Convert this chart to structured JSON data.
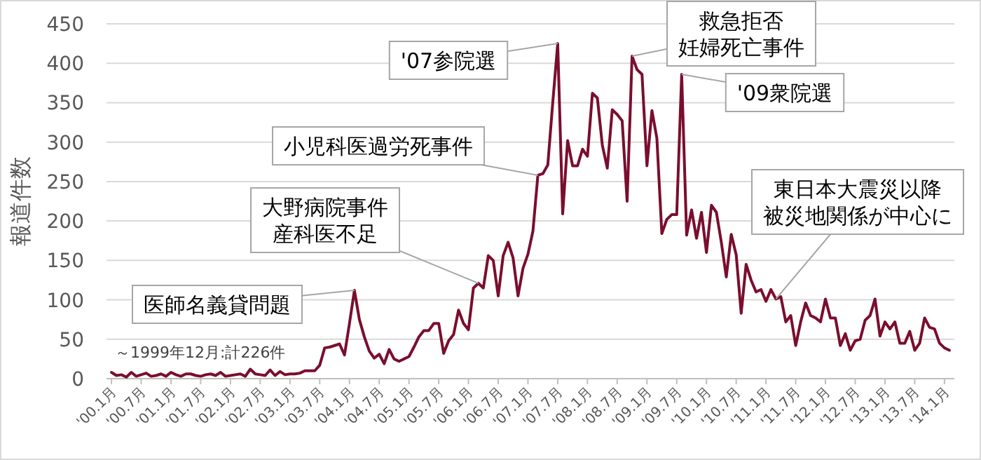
{
  "chart_data": {
    "type": "line",
    "ylabel": "報道件数",
    "x": [
      "2000-01",
      "2000-02",
      "2000-03",
      "2000-04",
      "2000-05",
      "2000-06",
      "2000-07",
      "2000-08",
      "2000-09",
      "2000-10",
      "2000-11",
      "2000-12",
      "2001-01",
      "2001-02",
      "2001-03",
      "2001-04",
      "2001-05",
      "2001-06",
      "2001-07",
      "2001-08",
      "2001-09",
      "2001-10",
      "2001-11",
      "2001-12",
      "2002-01",
      "2002-02",
      "2002-03",
      "2002-04",
      "2002-05",
      "2002-06",
      "2002-07",
      "2002-08",
      "2002-09",
      "2002-10",
      "2002-11",
      "2002-12",
      "2003-01",
      "2003-02",
      "2003-03",
      "2003-04",
      "2003-05",
      "2003-06",
      "2003-07",
      "2003-08",
      "2003-09",
      "2003-10",
      "2003-11",
      "2003-12",
      "2004-01",
      "2004-02",
      "2004-03",
      "2004-04",
      "2004-05",
      "2004-06",
      "2004-07",
      "2004-08",
      "2004-09",
      "2004-10",
      "2004-11",
      "2004-12",
      "2005-01",
      "2005-02",
      "2005-03",
      "2005-04",
      "2005-05",
      "2005-06",
      "2005-07",
      "2005-08",
      "2005-09",
      "2005-10",
      "2005-11",
      "2005-12",
      "2006-01",
      "2006-02",
      "2006-03",
      "2006-04",
      "2006-05",
      "2006-06",
      "2006-07",
      "2006-08",
      "2006-09",
      "2006-10",
      "2006-11",
      "2006-12",
      "2007-01",
      "2007-02",
      "2007-03",
      "2007-04",
      "2007-05",
      "2007-06",
      "2007-07",
      "2007-08",
      "2007-09",
      "2007-10",
      "2007-11",
      "2007-12",
      "2008-01",
      "2008-02",
      "2008-03",
      "2008-04",
      "2008-05",
      "2008-06",
      "2008-07",
      "2008-08",
      "2008-09",
      "2008-10",
      "2008-11",
      "2008-12",
      "2009-01",
      "2009-02",
      "2009-03",
      "2009-04",
      "2009-05",
      "2009-06",
      "2009-07",
      "2009-08",
      "2009-09",
      "2009-10",
      "2009-11",
      "2009-12",
      "2010-01",
      "2010-02",
      "2010-03",
      "2010-04",
      "2010-05",
      "2010-06",
      "2010-07",
      "2010-08",
      "2010-09",
      "2010-10",
      "2010-11",
      "2010-12",
      "2011-01",
      "2011-02",
      "2011-03",
      "2011-04",
      "2011-05",
      "2011-06",
      "2011-07",
      "2011-08",
      "2011-09",
      "2011-10",
      "2011-11",
      "2011-12",
      "2012-01",
      "2012-02",
      "2012-03",
      "2012-04",
      "2012-05",
      "2012-06",
      "2012-07",
      "2012-08",
      "2012-09",
      "2012-10",
      "2012-11",
      "2012-12",
      "2013-01",
      "2013-02",
      "2013-03",
      "2013-04",
      "2013-05",
      "2013-06",
      "2013-07",
      "2013-08",
      "2013-09",
      "2013-10",
      "2013-11",
      "2013-12",
      "2014-01",
      "2014-02"
    ],
    "series": [
      {
        "color": "#7a0e2e",
        "values": [
          8,
          4,
          5,
          2,
          8,
          3,
          5,
          7,
          3,
          4,
          6,
          3,
          8,
          5,
          3,
          6,
          6,
          4,
          3,
          5,
          6,
          4,
          8,
          3,
          4,
          5,
          6,
          3,
          12,
          6,
          5,
          4,
          11,
          4,
          9,
          5,
          6,
          6,
          7,
          10,
          10,
          10,
          17,
          39,
          40,
          42,
          44,
          30,
          70,
          112,
          75,
          53,
          35,
          26,
          31,
          19,
          37,
          25,
          22,
          25,
          28,
          40,
          53,
          61,
          61,
          70,
          70,
          32,
          48,
          56,
          87,
          70,
          62,
          115,
          121,
          115,
          156,
          150,
          105,
          156,
          173,
          153,
          105,
          140,
          158,
          187,
          258,
          260,
          271,
          350,
          425,
          209,
          302,
          270,
          270,
          291,
          282,
          362,
          356,
          296,
          267,
          341,
          335,
          327,
          225,
          409,
          392,
          386,
          270,
          340,
          305,
          184,
          202,
          208,
          208,
          386,
          182,
          214,
          178,
          211,
          160,
          220,
          211,
          173,
          129,
          183,
          157,
          83,
          145,
          125,
          110,
          113,
          98,
          113,
          101,
          104,
          72,
          80,
          42,
          72,
          96,
          80,
          77,
          72,
          101,
          77,
          77,
          42,
          57,
          36,
          48,
          50,
          74,
          80,
          101,
          54,
          72,
          63,
          72,
          45,
          45,
          60,
          36,
          45,
          77,
          65,
          63,
          45,
          39,
          36
        ]
      }
    ],
    "xlim": [
      "1999-12",
      "2014-03"
    ],
    "xticks": [
      {
        "value": "2000-01",
        "label": "'00.1月"
      },
      {
        "value": "2000-07",
        "label": "'00.7月"
      },
      {
        "value": "2001-01",
        "label": "'01.1月"
      },
      {
        "value": "2001-07",
        "label": "'01.7月"
      },
      {
        "value": "2002-01",
        "label": "'02.1月"
      },
      {
        "value": "2002-07",
        "label": "'02.7月"
      },
      {
        "value": "2003-01",
        "label": "'03.1月"
      },
      {
        "value": "2003-07",
        "label": "'03.7月"
      },
      {
        "value": "2004-01",
        "label": "'04.1月"
      },
      {
        "value": "2004-07",
        "label": "'04.7月"
      },
      {
        "value": "2005-01",
        "label": "'05.1月"
      },
      {
        "value": "2005-07",
        "label": "'05.7月"
      },
      {
        "value": "2006-01",
        "label": "'06.1月"
      },
      {
        "value": "2006-07",
        "label": "'06.7月"
      },
      {
        "value": "2007-01",
        "label": "'07.1月"
      },
      {
        "value": "2007-07",
        "label": "'07.7月"
      },
      {
        "value": "2008-01",
        "label": "'08.1月"
      },
      {
        "value": "2008-07",
        "label": "'08.7月"
      },
      {
        "value": "2009-01",
        "label": "'09.1月"
      },
      {
        "value": "2009-07",
        "label": "'09.7月"
      },
      {
        "value": "2010-01",
        "label": "'10.1月"
      },
      {
        "value": "2010-07",
        "label": "'10.7月"
      },
      {
        "value": "2011-01",
        "label": "'11.1月"
      },
      {
        "value": "2011-07",
        "label": "'11.7月"
      },
      {
        "value": "2012-01",
        "label": "'12.1月"
      },
      {
        "value": "2012-07",
        "label": "'12.7月"
      },
      {
        "value": "2013-01",
        "label": "'13.1月"
      },
      {
        "value": "2013-07",
        "label": "'13.7月"
      },
      {
        "value": "2014-01",
        "label": "'14.1月"
      }
    ],
    "ylim": [
      0,
      450
    ],
    "yticks": [
      0,
      50,
      100,
      150,
      200,
      250,
      300,
      350,
      400,
      450
    ],
    "grid": "y",
    "marker": "none",
    "line_style": "solid",
    "annotations": [
      {
        "text": "医師名義貸問題",
        "x": "2004-02",
        "y": 112
      },
      {
        "text": "大野病院事件産科医不足",
        "x": "2006-03",
        "y": 121
      },
      {
        "text": "小児科医過労死事件",
        "x": "2007-03",
        "y": 258
      },
      {
        "text": "'07参院選",
        "x": "2007-07",
        "y": 425
      },
      {
        "text": "救急拒否妊婦死亡事件",
        "x": "2008-10",
        "y": 409
      },
      {
        "text": "'09衆院選",
        "x": "2009-08",
        "y": 386
      },
      {
        "text": "東日本大震災以降被災地関係が中心に",
        "x": "2011-03",
        "y": 101
      },
      "～1999年12月:計226件"
    ]
  }
}
